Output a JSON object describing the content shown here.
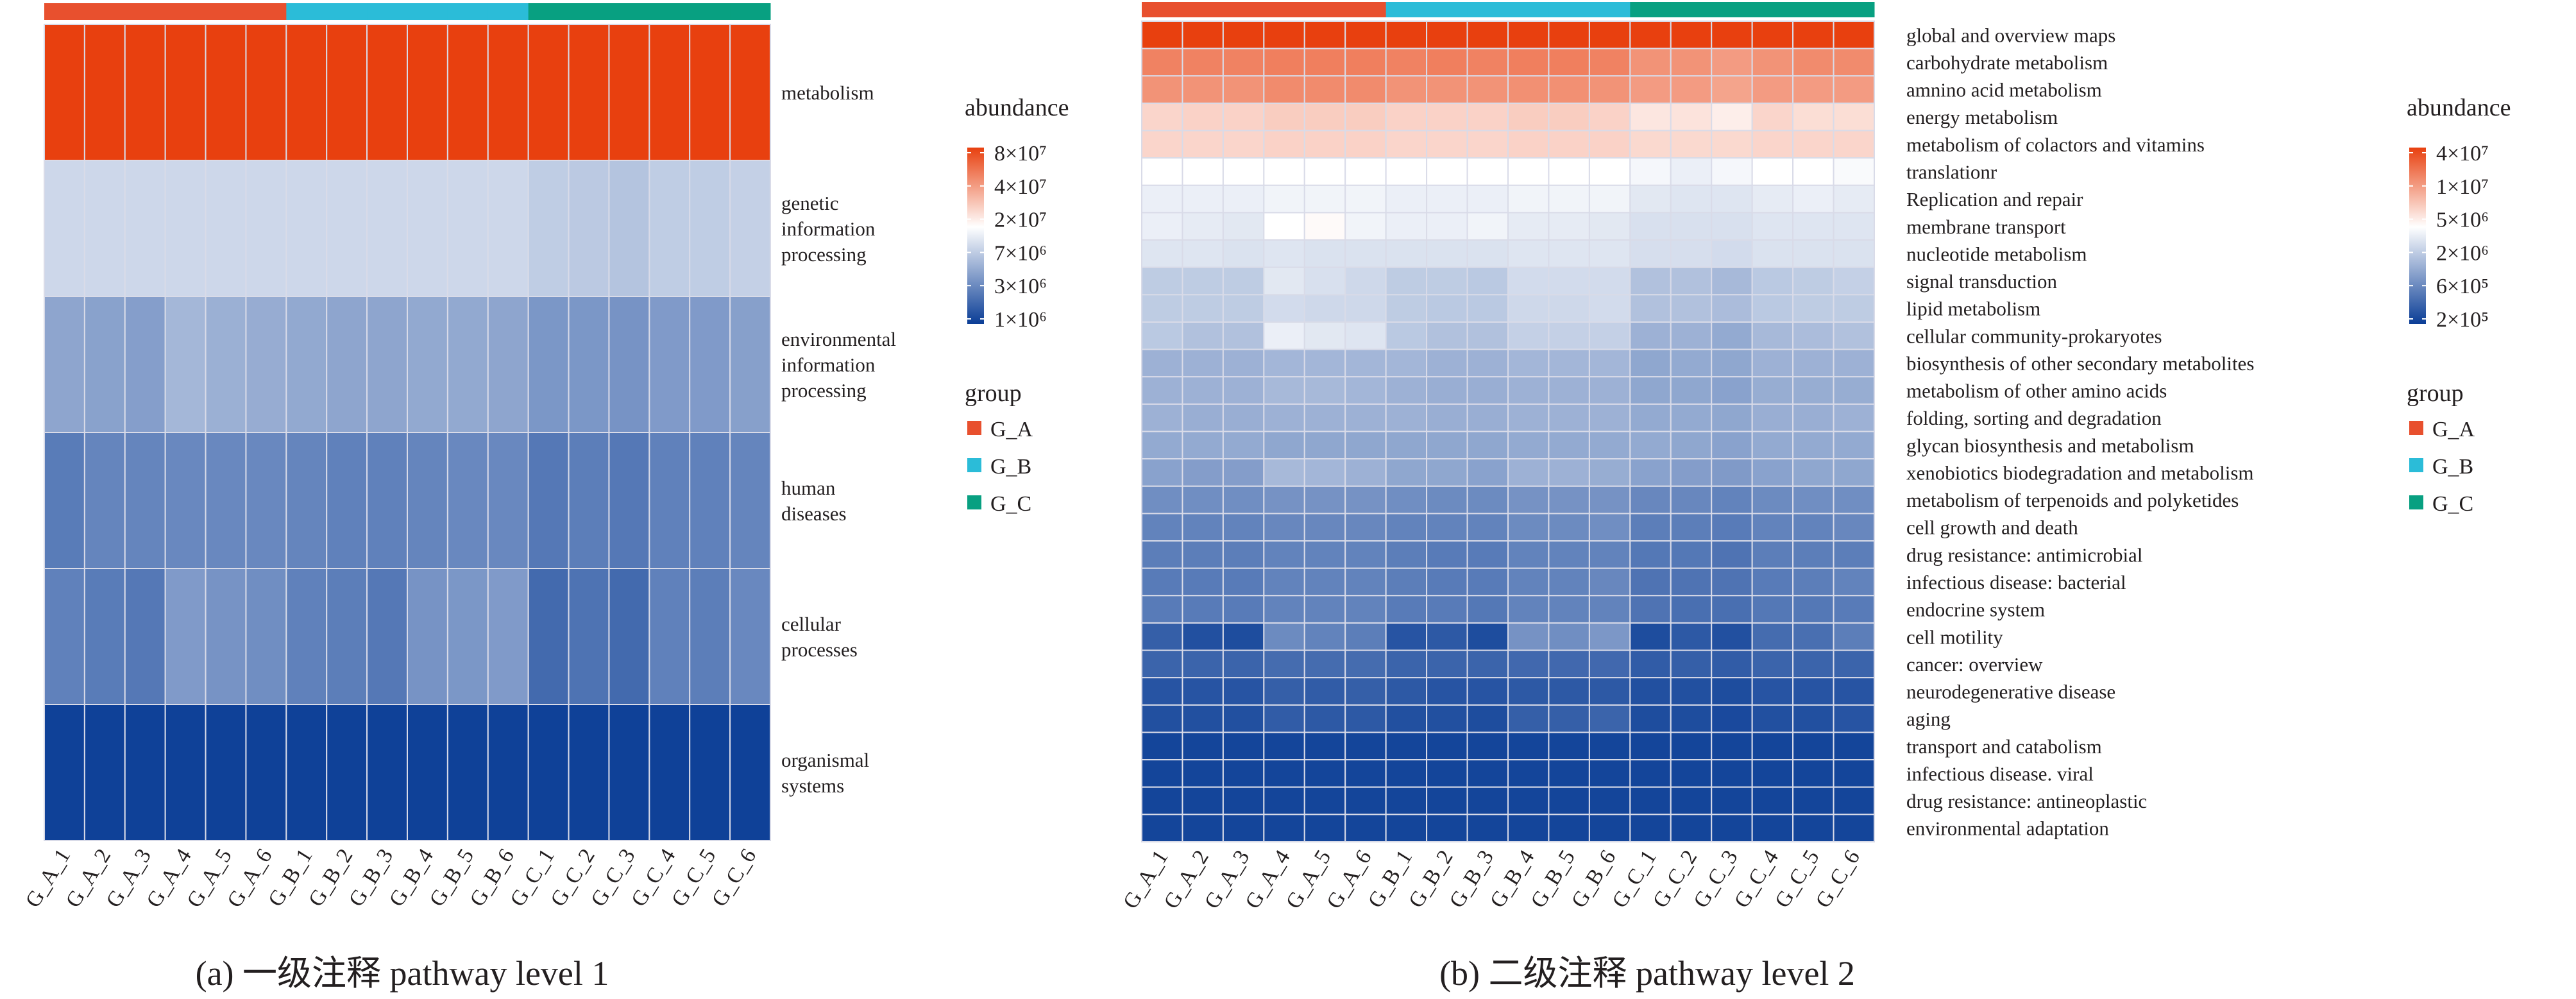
{
  "colors": {
    "high": "#e8400f",
    "mid": "#ffffff",
    "low": "#0a3d96",
    "G_A": "#e8502e",
    "G_B": "#2bbcd8",
    "G_C": "#08a081",
    "grid": "#d9dbe8"
  },
  "chart_data": [
    {
      "type": "heatmap",
      "title": "(a) 一级注释 pathway level 1",
      "value_unit": "log10(abundance)",
      "scale": {
        "low": 6.0,
        "mid": 7.08,
        "high": 7.9
      },
      "columns": [
        "G_A_1",
        "G_A_2",
        "G_A_3",
        "G_A_4",
        "G_A_5",
        "G_A_6",
        "G_B_1",
        "G_B_2",
        "G_B_3",
        "G_B_4",
        "G_B_5",
        "G_B_6",
        "G_C_1",
        "G_C_2",
        "G_C_3",
        "G_C_4",
        "G_C_5",
        "G_C_6"
      ],
      "column_groups": [
        "G_A",
        "G_A",
        "G_A",
        "G_A",
        "G_A",
        "G_A",
        "G_B",
        "G_B",
        "G_B",
        "G_B",
        "G_B",
        "G_B",
        "G_C",
        "G_C",
        "G_C",
        "G_C",
        "G_C",
        "G_C"
      ],
      "rows": [
        "metabolism",
        "genetic information processing",
        "environmental information processing",
        "human diseases",
        "cellular processes",
        "organismal systems"
      ],
      "row_label_lines": [
        [
          "metabolism"
        ],
        [
          "genetic",
          "information",
          "processing"
        ],
        [
          "environmental",
          "information",
          "processing"
        ],
        [
          "human",
          "diseases"
        ],
        [
          "cellular",
          "processes"
        ],
        [
          "organismal",
          "systems"
        ]
      ],
      "values": [
        [
          7.9,
          7.9,
          7.9,
          7.9,
          7.9,
          7.9,
          7.9,
          7.9,
          7.9,
          7.9,
          7.9,
          7.9,
          7.92,
          7.92,
          7.95,
          7.92,
          7.9,
          7.9
        ],
        [
          6.86,
          6.86,
          6.86,
          6.86,
          6.86,
          6.86,
          6.86,
          6.86,
          6.86,
          6.86,
          6.86,
          6.86,
          6.8,
          6.78,
          6.75,
          6.8,
          6.8,
          6.82
        ],
        [
          6.58,
          6.56,
          6.54,
          6.68,
          6.64,
          6.62,
          6.6,
          6.58,
          6.58,
          6.6,
          6.6,
          6.58,
          6.5,
          6.5,
          6.48,
          6.52,
          6.52,
          6.55
        ],
        [
          6.35,
          6.4,
          6.4,
          6.42,
          6.42,
          6.42,
          6.4,
          6.38,
          6.38,
          6.4,
          6.42,
          6.42,
          6.33,
          6.36,
          6.33,
          6.38,
          6.38,
          6.4
        ],
        [
          6.38,
          6.35,
          6.33,
          6.52,
          6.48,
          6.45,
          6.38,
          6.36,
          6.33,
          6.48,
          6.5,
          6.52,
          6.25,
          6.3,
          6.25,
          6.38,
          6.36,
          6.42
        ],
        [
          6.02,
          6.02,
          6.02,
          6.02,
          6.02,
          6.02,
          6.02,
          6.02,
          6.02,
          6.02,
          6.02,
          6.02,
          6.02,
          6.02,
          6.02,
          6.02,
          6.02,
          6.02
        ]
      ],
      "legend": {
        "title": "abundance",
        "ticks": [
          "8×10⁷",
          "4×10⁷",
          "2×10⁷",
          "7×10⁶",
          "3×10⁶",
          "1×10⁶"
        ],
        "group_title": "group",
        "groups": [
          "G_A",
          "G_B",
          "G_C"
        ]
      }
    },
    {
      "type": "heatmap",
      "title": "(b) 二级注释 pathway level 2",
      "value_unit": "log10(abundance)",
      "scale": {
        "low": 5.2,
        "mid": 6.45,
        "high": 7.6
      },
      "columns": [
        "G_A_1",
        "G_A_2",
        "G_A_3",
        "G_A_4",
        "G_A_5",
        "G_A_6",
        "G_B_1",
        "G_B_2",
        "G_B_3",
        "G_B_4",
        "G_B_5",
        "G_B_6",
        "G_C_1",
        "G_C_2",
        "G_C_3",
        "G_C_4",
        "G_C_5",
        "G_C_6"
      ],
      "column_groups": [
        "G_A",
        "G_A",
        "G_A",
        "G_A",
        "G_A",
        "G_A",
        "G_B",
        "G_B",
        "G_B",
        "G_B",
        "G_B",
        "G_B",
        "G_C",
        "G_C",
        "G_C",
        "G_C",
        "G_C",
        "G_C"
      ],
      "rows": [
        "global and overview maps",
        "carbohydrate metabolism",
        "amnino acid metabolism",
        "energy metabolism",
        "metabolism of colactors and vitamins",
        "translationr",
        "Replication and repair",
        "membrane transport",
        "nucleotide metabolism",
        "signal transduction",
        "lipid metabolism",
        "cellular community-prokaryotes",
        "biosynthesis of other secondary metabolites",
        "metabolism of other amino acids",
        "folding, sorting and degradation",
        "glycan biosynthesis and metabolism",
        "xenobiotics biodegradation and metabolism",
        "metabolism of terpenoids and polyketides",
        "cell growth and death",
        "drug resistance: antimicrobial",
        "infectious disease: bacterial",
        "endocrine system",
        "cell motility",
        "cancer: overview",
        "neurodegenerative disease",
        "aging",
        "transport and catabolism",
        "infectious disease. viral",
        "drug resistance: antineoplastic",
        "environmental adaptation"
      ],
      "values": [
        [
          7.6,
          7.6,
          7.6,
          7.6,
          7.6,
          7.6,
          7.6,
          7.6,
          7.6,
          7.6,
          7.6,
          7.6,
          7.6,
          7.6,
          7.6,
          7.6,
          7.6,
          7.6
        ],
        [
          7.2,
          7.2,
          7.2,
          7.22,
          7.22,
          7.22,
          7.2,
          7.22,
          7.2,
          7.22,
          7.22,
          7.2,
          7.1,
          7.1,
          7.05,
          7.1,
          7.15,
          7.15
        ],
        [
          7.1,
          7.1,
          7.1,
          7.15,
          7.15,
          7.15,
          7.1,
          7.1,
          7.1,
          7.12,
          7.12,
          7.1,
          7.05,
          7.05,
          7.0,
          7.05,
          7.05,
          7.05
        ],
        [
          6.7,
          6.72,
          6.72,
          6.75,
          6.75,
          6.75,
          6.72,
          6.72,
          6.72,
          6.75,
          6.75,
          6.72,
          6.6,
          6.62,
          6.55,
          6.7,
          6.65,
          6.65
        ],
        [
          6.7,
          6.7,
          6.7,
          6.72,
          6.72,
          6.72,
          6.7,
          6.7,
          6.7,
          6.72,
          6.72,
          6.72,
          6.68,
          6.68,
          6.68,
          6.7,
          6.7,
          6.7
        ],
        [
          6.45,
          6.45,
          6.45,
          6.45,
          6.45,
          6.45,
          6.45,
          6.45,
          6.45,
          6.45,
          6.45,
          6.45,
          6.4,
          6.35,
          6.4,
          6.45,
          6.45,
          6.42
        ],
        [
          6.35,
          6.35,
          6.35,
          6.38,
          6.38,
          6.38,
          6.35,
          6.35,
          6.35,
          6.38,
          6.38,
          6.38,
          6.3,
          6.28,
          6.28,
          6.32,
          6.35,
          6.32
        ],
        [
          6.35,
          6.32,
          6.3,
          6.45,
          6.48,
          6.38,
          6.35,
          6.35,
          6.38,
          6.32,
          6.32,
          6.3,
          6.25,
          6.25,
          6.25,
          6.28,
          6.28,
          6.28
        ],
        [
          6.28,
          6.28,
          6.26,
          6.28,
          6.26,
          6.26,
          6.26,
          6.26,
          6.26,
          6.28,
          6.28,
          6.28,
          6.24,
          6.24,
          6.22,
          6.26,
          6.26,
          6.26
        ],
        [
          6.12,
          6.12,
          6.12,
          6.3,
          6.25,
          6.2,
          6.12,
          6.12,
          6.1,
          6.22,
          6.22,
          6.22,
          6.05,
          6.05,
          6.0,
          6.1,
          6.12,
          6.15
        ],
        [
          6.12,
          6.12,
          6.12,
          6.22,
          6.2,
          6.2,
          6.12,
          6.1,
          6.1,
          6.2,
          6.2,
          6.22,
          6.05,
          6.05,
          6.02,
          6.1,
          6.12,
          6.12
        ],
        [
          6.1,
          6.05,
          6.05,
          6.35,
          6.3,
          6.28,
          6.1,
          6.05,
          6.05,
          6.15,
          6.15,
          6.15,
          5.95,
          5.95,
          5.9,
          6.0,
          6.02,
          6.05
        ],
        [
          5.95,
          5.95,
          5.95,
          5.98,
          5.98,
          5.98,
          5.98,
          5.95,
          5.95,
          5.98,
          5.98,
          5.98,
          5.88,
          5.9,
          5.88,
          5.95,
          5.95,
          5.95
        ],
        [
          5.95,
          5.95,
          5.95,
          6.0,
          6.0,
          5.98,
          5.95,
          5.93,
          5.93,
          5.95,
          5.95,
          5.95,
          5.88,
          5.88,
          5.85,
          5.92,
          5.92,
          5.92
        ],
        [
          5.95,
          5.93,
          5.93,
          5.95,
          5.95,
          5.95,
          5.95,
          5.93,
          5.93,
          5.95,
          5.95,
          5.95,
          5.9,
          5.9,
          5.88,
          5.93,
          5.93,
          5.95
        ],
        [
          5.9,
          5.9,
          5.9,
          5.88,
          5.88,
          5.88,
          5.88,
          5.88,
          5.88,
          5.9,
          5.9,
          5.9,
          5.9,
          5.88,
          5.85,
          5.9,
          5.9,
          5.9
        ],
        [
          5.85,
          5.82,
          5.82,
          6.0,
          5.98,
          5.95,
          5.88,
          5.88,
          5.85,
          5.95,
          5.95,
          5.92,
          5.85,
          5.82,
          5.8,
          5.85,
          5.88,
          5.88
        ],
        [
          5.72,
          5.72,
          5.72,
          5.75,
          5.75,
          5.75,
          5.72,
          5.7,
          5.7,
          5.75,
          5.75,
          5.75,
          5.68,
          5.68,
          5.65,
          5.7,
          5.72,
          5.72
        ],
        [
          5.65,
          5.65,
          5.65,
          5.68,
          5.68,
          5.68,
          5.65,
          5.65,
          5.65,
          5.7,
          5.7,
          5.72,
          5.62,
          5.62,
          5.6,
          5.65,
          5.65,
          5.68
        ],
        [
          5.62,
          5.62,
          5.62,
          5.65,
          5.65,
          5.65,
          5.62,
          5.6,
          5.6,
          5.65,
          5.65,
          5.65,
          5.58,
          5.58,
          5.55,
          5.62,
          5.62,
          5.62
        ],
        [
          5.6,
          5.6,
          5.6,
          5.65,
          5.65,
          5.65,
          5.62,
          5.6,
          5.6,
          5.65,
          5.65,
          5.68,
          5.55,
          5.55,
          5.55,
          5.6,
          5.62,
          5.65
        ],
        [
          5.6,
          5.6,
          5.6,
          5.65,
          5.65,
          5.65,
          5.6,
          5.6,
          5.58,
          5.65,
          5.65,
          5.65,
          5.55,
          5.52,
          5.52,
          5.58,
          5.58,
          5.6
        ],
        [
          5.42,
          5.32,
          5.3,
          5.7,
          5.65,
          5.62,
          5.35,
          5.38,
          5.3,
          5.75,
          5.72,
          5.78,
          5.3,
          5.38,
          5.32,
          5.5,
          5.52,
          5.62
        ],
        [
          5.45,
          5.45,
          5.45,
          5.5,
          5.5,
          5.5,
          5.45,
          5.45,
          5.45,
          5.48,
          5.48,
          5.48,
          5.4,
          5.42,
          5.4,
          5.45,
          5.45,
          5.45
        ],
        [
          5.35,
          5.35,
          5.35,
          5.42,
          5.4,
          5.42,
          5.38,
          5.35,
          5.35,
          5.38,
          5.38,
          5.38,
          5.32,
          5.32,
          5.3,
          5.35,
          5.35,
          5.35
        ],
        [
          5.32,
          5.32,
          5.32,
          5.4,
          5.38,
          5.38,
          5.32,
          5.32,
          5.3,
          5.42,
          5.42,
          5.45,
          5.3,
          5.3,
          5.28,
          5.32,
          5.32,
          5.35
        ],
        [
          5.25,
          5.25,
          5.25,
          5.25,
          5.25,
          5.25,
          5.25,
          5.25,
          5.25,
          5.25,
          5.25,
          5.25,
          5.25,
          5.25,
          5.25,
          5.25,
          5.25,
          5.25
        ],
        [
          5.25,
          5.25,
          5.25,
          5.25,
          5.25,
          5.25,
          5.25,
          5.25,
          5.25,
          5.25,
          5.25,
          5.25,
          5.25,
          5.25,
          5.25,
          5.25,
          5.25,
          5.25
        ],
        [
          5.25,
          5.25,
          5.25,
          5.25,
          5.25,
          5.25,
          5.25,
          5.25,
          5.25,
          5.25,
          5.25,
          5.25,
          5.25,
          5.25,
          5.25,
          5.25,
          5.25,
          5.25
        ],
        [
          5.25,
          5.25,
          5.25,
          5.25,
          5.25,
          5.25,
          5.25,
          5.25,
          5.25,
          5.25,
          5.25,
          5.25,
          5.25,
          5.25,
          5.25,
          5.25,
          5.25,
          5.25
        ]
      ],
      "legend": {
        "title": "abundance",
        "ticks": [
          "4×10⁷",
          "1×10⁷",
          "5×10⁶",
          "2×10⁶",
          "6×10⁵",
          "2×10⁵"
        ],
        "group_title": "group",
        "groups": [
          "G_A",
          "G_B",
          "G_C"
        ]
      }
    }
  ]
}
